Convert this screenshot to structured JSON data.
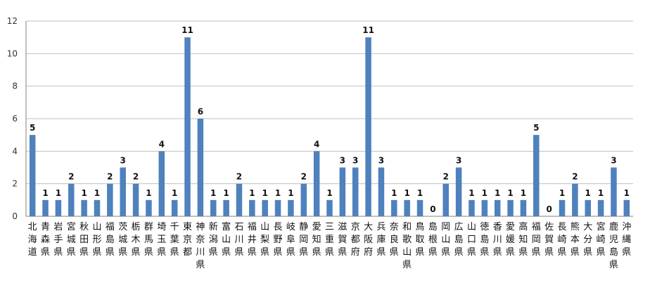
{
  "chart_data": {
    "type": "bar",
    "title": "",
    "xlabel": "",
    "ylabel": "",
    "ylim": [
      0,
      12
    ],
    "yticks": [
      0,
      2,
      4,
      6,
      8,
      10,
      12
    ],
    "grid": true,
    "legend": "none",
    "bar_color": "#4f81bd",
    "grid_color": "#c0c0c0",
    "categories": [
      "北海道",
      "青森県",
      "岩手県",
      "宮城県",
      "秋田県",
      "山形県",
      "福島県",
      "茨城県",
      "栃木県",
      "群馬県",
      "埼玉県",
      "千葉県",
      "東京都",
      "神奈川県",
      "新潟県",
      "富山県",
      "石川県",
      "福井県",
      "山梨県",
      "長野県",
      "岐阜県",
      "静岡県",
      "愛知県",
      "三重県",
      "滋賀県",
      "京都府",
      "大阪府",
      "兵庫県",
      "奈良県",
      "和歌山県",
      "鳥取県",
      "島根県",
      "岡山県",
      "広島県",
      "山口県",
      "徳島県",
      "香川県",
      "愛媛県",
      "高知県",
      "福岡県",
      "佐賀県",
      "長崎県",
      "熊本県",
      "大分県",
      "宮崎県",
      "鹿児島県",
      "沖縄県"
    ],
    "values": [
      5,
      1,
      1,
      2,
      1,
      1,
      2,
      3,
      2,
      1,
      4,
      1,
      11,
      6,
      1,
      1,
      2,
      1,
      1,
      1,
      1,
      2,
      4,
      1,
      3,
      3,
      11,
      3,
      1,
      1,
      1,
      0,
      2,
      3,
      1,
      1,
      1,
      1,
      1,
      5,
      0,
      1,
      2,
      1,
      1,
      3,
      1
    ]
  }
}
